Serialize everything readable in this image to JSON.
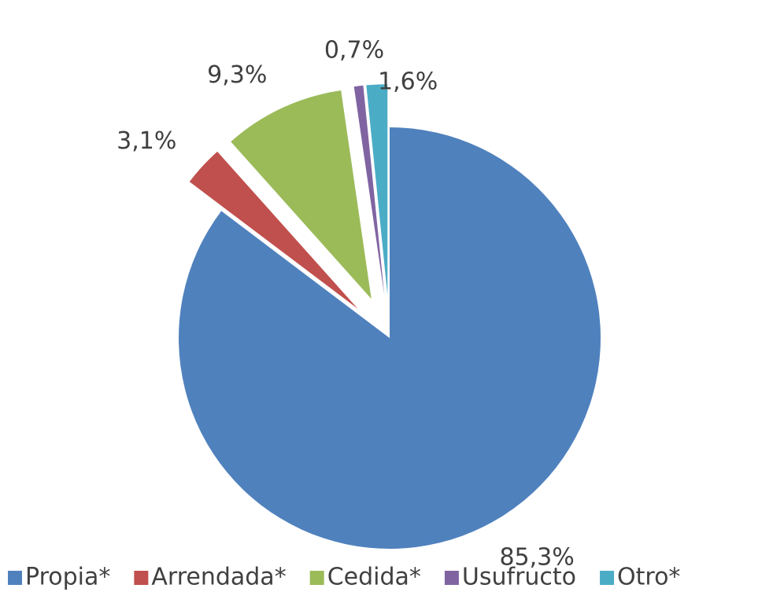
{
  "chart_data": {
    "type": "pie",
    "categories": [
      "Propia*",
      "Arrendada*",
      "Cedida*",
      "Usufructo",
      "Otro*"
    ],
    "values": [
      85.3,
      3.1,
      9.3,
      0.7,
      1.6
    ],
    "value_labels": [
      "85,3%",
      "3,1%",
      "9,3%",
      "0,7%",
      "1,6%"
    ],
    "colors": [
      "#4f81bd",
      "#c0504d",
      "#9bbb59",
      "#8064a2",
      "#4bacc6"
    ],
    "legend": "bottom"
  }
}
